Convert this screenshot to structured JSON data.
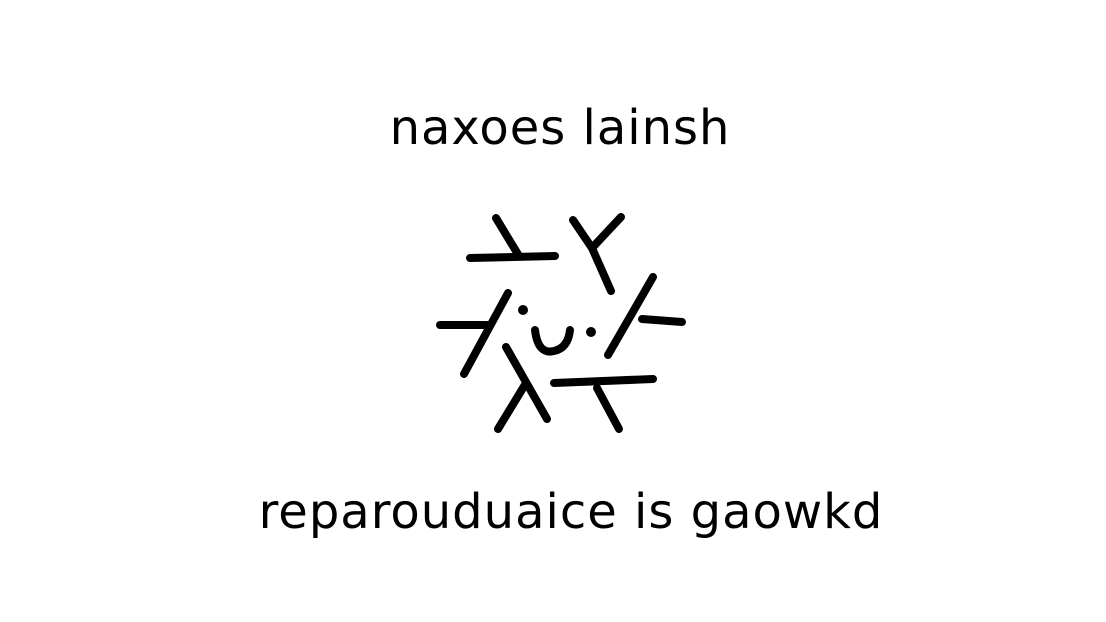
{
  "title": "naxoes lainsh",
  "subtitle": "reparouduaice is gaowkd",
  "illustration": {
    "icon": "doodle-face-icon",
    "stroke_color": "#000000"
  },
  "colors": {
    "background": "#ffffff",
    "text": "#000000"
  }
}
